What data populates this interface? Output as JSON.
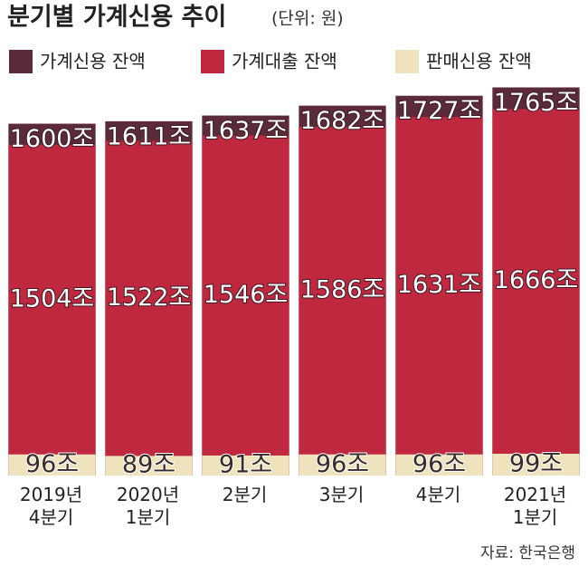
{
  "chart_data": {
    "type": "bar",
    "mode": "overlap",
    "title": "분기별 가계신용 추이",
    "subtitle": "(단위: 원)",
    "categories": [
      "2019년\n4분기",
      "2020년\n1분기",
      "2분기",
      "3분기",
      "4분기",
      "2021년\n1분기"
    ],
    "series": [
      {
        "name": "가계신용 잔액",
        "color": "#5b2b3a",
        "values": [
          1600,
          1611,
          1637,
          1682,
          1727,
          1765
        ],
        "value_labels": [
          "1600조",
          "1611조",
          "1637조",
          "1682조",
          "1727조",
          "1765조"
        ]
      },
      {
        "name": "가계대출 잔액",
        "color": "#c0283f",
        "values": [
          1504,
          1522,
          1546,
          1586,
          1631,
          1666
        ],
        "value_labels": [
          "1504조",
          "1522조",
          "1546조",
          "1586조",
          "1631조",
          "1666조"
        ]
      },
      {
        "name": "판매신용 잔액",
        "color": "#efe3bd",
        "values": [
          96,
          89,
          91,
          96,
          96,
          99
        ],
        "value_labels": [
          "96조",
          "89조",
          "91조",
          "96조",
          "96조",
          "99조"
        ]
      }
    ],
    "ylim": [
      0,
      1800
    ],
    "source": "자료: 한국은행"
  }
}
